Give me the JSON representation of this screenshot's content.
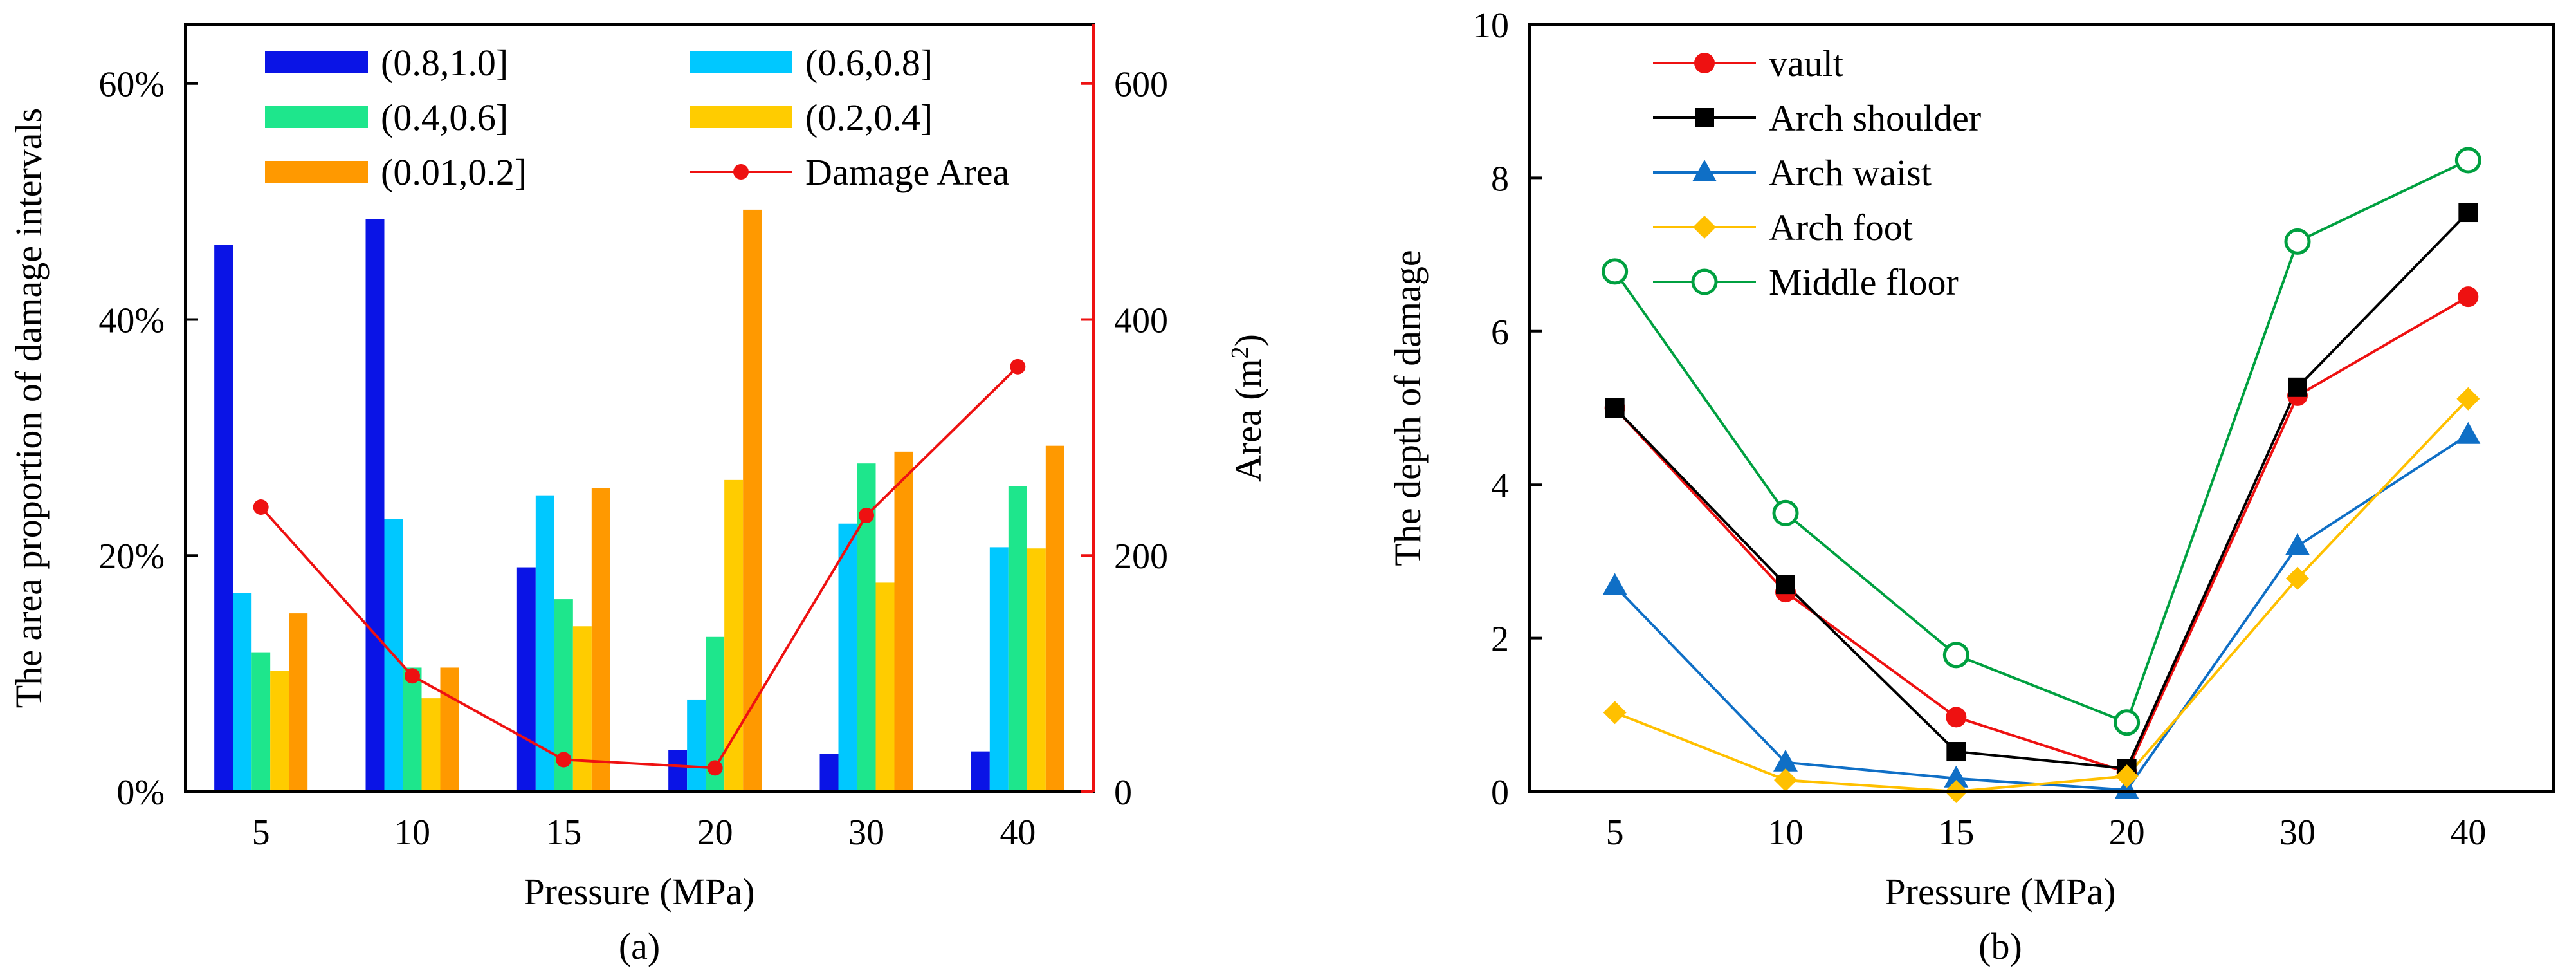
{
  "colors": {
    "d08_10": "#0A14E6",
    "d06_08": "#00C8FF",
    "d04_06": "#1EE68C",
    "d02_04": "#FFCC00",
    "d001_02": "#FF9900",
    "damage_area": "#EE1111",
    "vault": "#EE1111",
    "arch_shoulder": "#000000",
    "arch_waist": "#0F6FC6",
    "arch_foot": "#FFC000",
    "middle_floor": "#00A040"
  },
  "panel_a": {
    "caption": "(a)",
    "xlabel": "Pressure (MPa)",
    "ylabel_left": "The area proportion of  damage intervals",
    "ylabel_right_main": "Area (m",
    "ylabel_right_sup": "2",
    "ylabel_right_close": ")"
  },
  "panel_b": {
    "caption": "(b)",
    "xlabel": "Pressure (MPa)",
    "ylabel": "The depth of  damage"
  },
  "chart_data": [
    {
      "type": "bar",
      "title": "",
      "caption": "(a)",
      "xlabel": "Pressure (MPa)",
      "ylabel": "The area proportion of  damage intervals",
      "y2label": "Area (m2)",
      "categories": [
        "5",
        "10",
        "15",
        "20",
        "30",
        "40"
      ],
      "ylim": [
        0,
        65
      ],
      "yticks": [
        0,
        20,
        40,
        60
      ],
      "ytick_labels": [
        "0%",
        "20%",
        "40%",
        "60%"
      ],
      "y2lim": [
        0,
        650
      ],
      "y2ticks": [
        0,
        200,
        400,
        600
      ],
      "y2tick_labels": [
        "0",
        "200",
        "400",
        "600"
      ],
      "legend_position": "top",
      "series": [
        {
          "name": "(0.8,1.0]",
          "color_key": "d08_10",
          "values": [
            46.3,
            48.5,
            19.0,
            3.5,
            3.2,
            3.4
          ]
        },
        {
          "name": "(0.6,0.8]",
          "color_key": "d06_08",
          "values": [
            16.8,
            23.1,
            25.1,
            7.8,
            22.7,
            20.7
          ]
        },
        {
          "name": "(0.4,0.6]",
          "color_key": "d04_06",
          "values": [
            11.8,
            10.5,
            16.3,
            13.1,
            27.8,
            25.9
          ]
        },
        {
          "name": "(0.2,0.4]",
          "color_key": "d02_04",
          "values": [
            10.2,
            7.9,
            14.0,
            26.4,
            17.7,
            20.6
          ]
        },
        {
          "name": "(0.01,0.2]",
          "color_key": "d001_02",
          "values": [
            15.1,
            10.5,
            25.7,
            49.3,
            28.8,
            29.3
          ]
        }
      ],
      "line_series": {
        "name": "Damage Area",
        "axis": "right",
        "color_key": "damage_area",
        "values": [
          241,
          98,
          27,
          20,
          234,
          360
        ]
      }
    },
    {
      "type": "line",
      "title": "",
      "caption": "(b)",
      "xlabel": "Pressure (MPa)",
      "ylabel": "The depth of  damage",
      "categories": [
        "5",
        "10",
        "15",
        "20",
        "30",
        "40"
      ],
      "ylim": [
        0,
        10
      ],
      "yticks": [
        0,
        2,
        4,
        6,
        8,
        10
      ],
      "ytick_labels": [
        "0",
        "2",
        "4",
        "6",
        "8",
        "10"
      ],
      "legend_position": "top-left",
      "series": [
        {
          "name": "vault",
          "color_key": "vault",
          "marker": "circle-filled",
          "values": [
            5.0,
            2.6,
            0.97,
            0.25,
            5.16,
            6.45
          ]
        },
        {
          "name": "Arch shoulder",
          "color_key": "arch_shoulder",
          "marker": "square-filled",
          "values": [
            5.0,
            2.7,
            0.52,
            0.3,
            5.27,
            7.55
          ]
        },
        {
          "name": "Arch waist",
          "color_key": "arch_waist",
          "marker": "triangle-filled",
          "values": [
            2.68,
            0.38,
            0.17,
            0.02,
            3.2,
            4.65
          ]
        },
        {
          "name": "Arch foot",
          "color_key": "arch_foot",
          "marker": "diamond-filled",
          "values": [
            1.03,
            0.15,
            0.0,
            0.2,
            2.78,
            5.12
          ]
        },
        {
          "name": "Middle floor",
          "color_key": "middle_floor",
          "marker": "circle-open",
          "values": [
            6.78,
            3.63,
            1.78,
            0.9,
            7.17,
            8.23
          ]
        }
      ]
    }
  ]
}
